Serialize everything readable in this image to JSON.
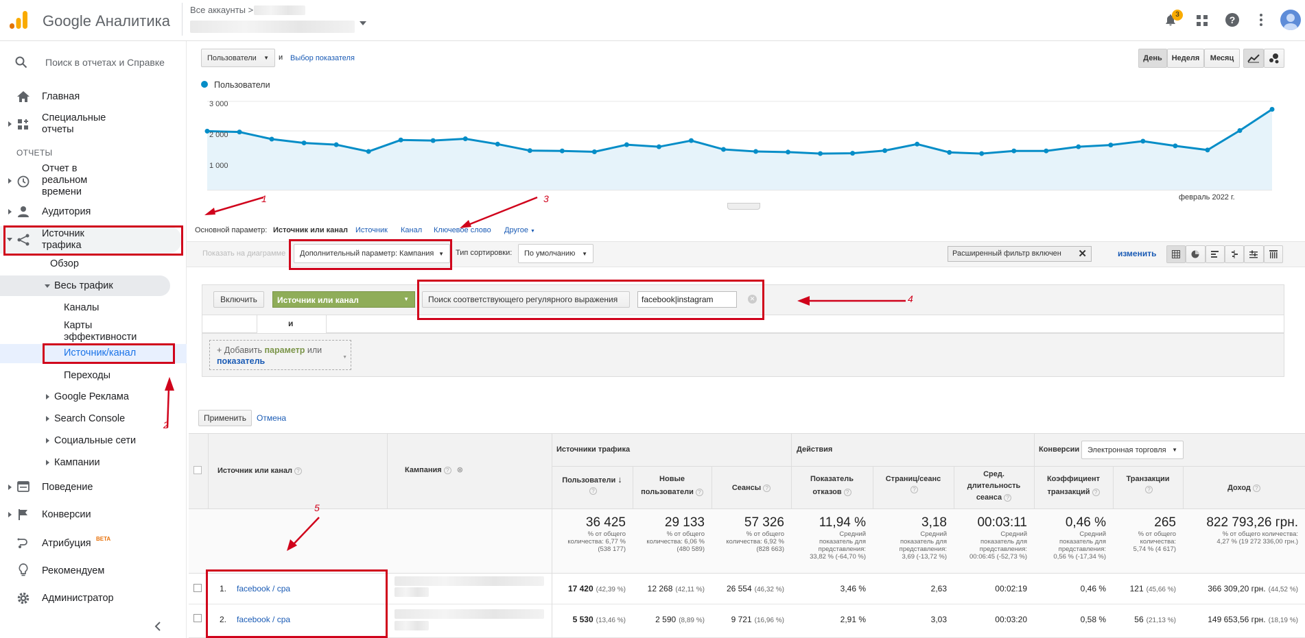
{
  "app": {
    "brand": "Google Аналитика",
    "breadcrumb": "Все аккаунты >"
  },
  "top_icons": {
    "notifications_count": "3"
  },
  "sidebar": {
    "search_placeholder": "Поиск в отчетах и Справке",
    "home": "Главная",
    "custom_reports_l1": "Специальные",
    "custom_reports_l2": "отчеты",
    "section": "ОТЧЕТЫ",
    "realtime_l1": "Отчет в",
    "realtime_l2": "реальном",
    "realtime_l3": "времени",
    "audience": "Аудитория",
    "acquisition_l1": "Источник",
    "acquisition_l2": "трафика",
    "overview": "Обзор",
    "all_traffic": "Весь трафик",
    "channels": "Каналы",
    "treemaps_l1": "Карты",
    "treemaps_l2": "эффективности",
    "source_medium": "Источник/канал",
    "referrals": "Переходы",
    "google_ads": "Google Реклама",
    "search_console": "Search Console",
    "social": "Социальные сети",
    "campaigns": "Кампании",
    "behavior": "Поведение",
    "conversions": "Конверсии",
    "attribution": "Атрибуция",
    "beta": "BETA",
    "discover": "Рекомендуем",
    "admin": "Администратор"
  },
  "annotations": {
    "n1": "1",
    "n2": "2",
    "n3": "3",
    "n4": "4",
    "n5": "5"
  },
  "toolbar": {
    "metric_select": "Пользователи",
    "and": "и",
    "choose_metric": "Выбор показателя",
    "day": "День",
    "week": "Неделя",
    "month": "Месяц"
  },
  "chart_data": {
    "type": "line",
    "series": [
      {
        "name": "Пользователи",
        "color": "#058dc7",
        "values": [
          1990,
          1960,
          1720,
          1590,
          1530,
          1300,
          1690,
          1670,
          1730,
          1550,
          1330,
          1320,
          1290,
          1530,
          1460,
          1670,
          1370,
          1300,
          1280,
          1230,
          1240,
          1330,
          1550,
          1270,
          1230,
          1320,
          1320,
          1460,
          1520,
          1650,
          1490,
          1350,
          2010,
          2730
        ]
      }
    ],
    "y_ticks": [
      "3 000",
      "2 000",
      "1 000"
    ],
    "ylim": [
      0,
      3300
    ],
    "x_label_right": "февраль 2022 г.",
    "grid": true
  },
  "dims": {
    "primary_label": "Основной параметр:",
    "primary_active": "Источник или канал",
    "opt_source": "Источник",
    "opt_medium": "Канал",
    "opt_keyword": "Ключевое слово",
    "opt_other": "Другое"
  },
  "controls": {
    "plot_rows": "Показать на диаграмме",
    "secondary": "Дополнительный параметр: Кампания",
    "sort_label": "Тип сортировки:",
    "sort_value": "По умолчанию",
    "filter_status": "Расширенный фильтр включен",
    "edit": "изменить"
  },
  "filter": {
    "include": "Включить",
    "dimension": "Источник или канал",
    "match": "Поиск соответствующего регулярного выражения",
    "value": "facebook|instagram",
    "and": "и",
    "add_prefix": "+ Добавить ",
    "add_param": "параметр",
    "add_or": " или",
    "add_metric": "показатель",
    "apply": "Применить",
    "cancel": "Отмена"
  },
  "table": {
    "group_acq": "Источники трафика",
    "group_beh": "Действия",
    "group_conv": "Конверсии",
    "conv_select": "Электронная торговля",
    "col_dim": "Источник или канал",
    "col_campaign": "Кампания",
    "h_users": "Пользователи",
    "h_new_l1": "Новые",
    "h_new_l2": "пользователи",
    "h_sessions": "Сеансы",
    "h_bounce_l1": "Показатель",
    "h_bounce_l2": "отказов",
    "h_pps": "Страниц/сеанс",
    "h_dur_l1": "Сред.",
    "h_dur_l2": "длительность",
    "h_dur_l3": "сеанса",
    "h_cr_l1": "Коэффициент",
    "h_cr_l2": "транзакций",
    "h_trans": "Транзакции",
    "h_rev": "Доход",
    "totals": [
      {
        "v": "36 425",
        "s1": "% от общего",
        "s2": "количества: 6,77 %",
        "s3": "(538 177)"
      },
      {
        "v": "29 133",
        "s1": "% от общего",
        "s2": "количества: 6,06 %",
        "s3": "(480 589)"
      },
      {
        "v": "57 326",
        "s1": "% от общего",
        "s2": "количества: 6,92 %",
        "s3": "(828 663)"
      },
      {
        "v": "11,94 %",
        "s1": "Средний",
        "s2": "показатель для",
        "s3": "представления:",
        "s4": "33,82 % (-64,70 %)"
      },
      {
        "v": "3,18",
        "s1": "Средний",
        "s2": "показатель для",
        "s3": "представления:",
        "s4": "3,69 (-13,72 %)"
      },
      {
        "v": "00:03:11",
        "s1": "Средний",
        "s2": "показатель для",
        "s3": "представления:",
        "s4": "00:06:45 (-52,73 %)"
      },
      {
        "v": "0,46 %",
        "s1": "Средний",
        "s2": "показатель для",
        "s3": "представления:",
        "s4": "0,56 % (-17,34 %)"
      },
      {
        "v": "265",
        "s1": "% от общего",
        "s2": "количества:",
        "s3": "5,74 % (4 617)"
      },
      {
        "v": "822 793,26 грн.",
        "s1": "% от общего количества:",
        "s2": "4,27 % (19 272 336,00 грн.)"
      }
    ],
    "rows": [
      {
        "idx": "1.",
        "dim": "facebook / cpa",
        "users": "17 420",
        "users_pct": "(42,39 %)",
        "new": "12 268",
        "new_pct": "(42,11 %)",
        "sessions": "26 554",
        "sessions_pct": "(46,32 %)",
        "bounce": "3,46 %",
        "pps": "2,63",
        "dur": "00:02:19",
        "cr": "0,46 %",
        "trans": "121",
        "trans_pct": "(45,66 %)",
        "rev": "366 309,20 грн.",
        "rev_pct": "(44,52 %)"
      },
      {
        "idx": "2.",
        "dim": "facebook / cpa",
        "users": "5 530",
        "users_pct": "(13,46 %)",
        "new": "2 590",
        "new_pct": "(8,89 %)",
        "sessions": "9 721",
        "sessions_pct": "(16,96 %)",
        "bounce": "2,91 %",
        "pps": "3,03",
        "dur": "00:03:20",
        "cr": "0,58 %",
        "trans": "56",
        "trans_pct": "(21,13 %)",
        "rev": "149 653,56 грн.",
        "rev_pct": "(18,19 %)"
      }
    ]
  }
}
